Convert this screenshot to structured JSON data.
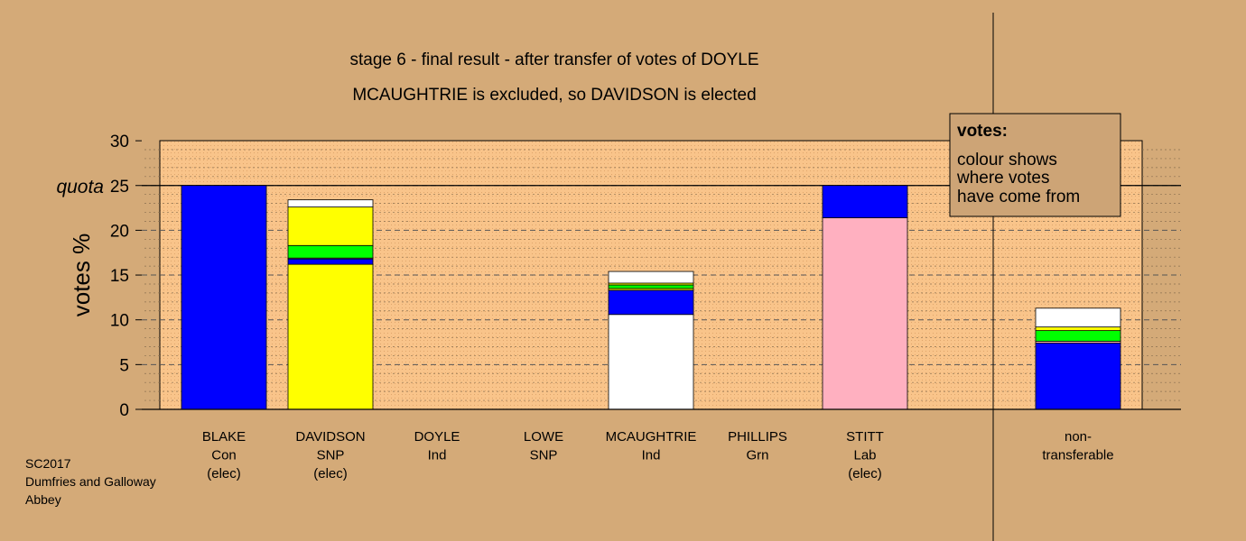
{
  "chart_data": {
    "type": "bar",
    "stacked": true,
    "title": "stage 6 - final result - after transfer of votes of DOYLE",
    "subtitle": "MCAUGHTRIE is excluded, so DAVIDSON is elected",
    "ylabel": "votes %",
    "ylim": [
      0,
      30
    ],
    "yticks": [
      "0",
      "5",
      "10",
      "15",
      "20",
      "25",
      "30"
    ],
    "quota_label": "quota",
    "quota": 25,
    "grid": true,
    "categories": [
      {
        "lines": [
          "BLAKE",
          "Con",
          "(elec)"
        ]
      },
      {
        "lines": [
          "DAVIDSON",
          "SNP",
          "(elec)"
        ]
      },
      {
        "lines": [
          "DOYLE",
          "Ind"
        ]
      },
      {
        "lines": [
          "LOWE",
          "SNP"
        ]
      },
      {
        "lines": [
          "MCAUGHTRIE",
          "Ind"
        ]
      },
      {
        "lines": [
          "PHILLIPS",
          "Grn"
        ]
      },
      {
        "lines": [
          "STITT",
          "Lab",
          "(elec)"
        ]
      },
      {
        "lines": [
          "non-",
          "transferable"
        ]
      }
    ],
    "stacks": [
      [
        {
          "value": 25.0,
          "color": "#0000ff"
        }
      ],
      [
        {
          "value": 16.2,
          "color": "#ffff00"
        },
        {
          "value": 0.6,
          "color": "#0000ff"
        },
        {
          "value": 0.1,
          "color": "#ffb0c0"
        },
        {
          "value": 1.4,
          "color": "#00ff00"
        },
        {
          "value": 4.3,
          "color": "#ffff00"
        },
        {
          "value": 0.8,
          "color": "#ffffff"
        }
      ],
      [],
      [],
      [
        {
          "value": 10.6,
          "color": "#ffffff"
        },
        {
          "value": 2.7,
          "color": "#0000ff"
        },
        {
          "value": 0.2,
          "color": "#ffff00"
        },
        {
          "value": 0.4,
          "color": "#00ff00"
        },
        {
          "value": 0.2,
          "color": "#ffff00"
        },
        {
          "value": 1.3,
          "color": "#ffffff"
        }
      ],
      [],
      [
        {
          "value": 21.4,
          "color": "#ffb0c0"
        },
        {
          "value": 3.6,
          "color": "#0000ff"
        }
      ],
      [
        {
          "value": 7.4,
          "color": "#0000ff"
        },
        {
          "value": 0.2,
          "color": "#ffb0c0"
        },
        {
          "value": 1.2,
          "color": "#00ff00"
        },
        {
          "value": 0.4,
          "color": "#ffff00"
        },
        {
          "value": 2.1,
          "color": "#ffffff"
        }
      ]
    ],
    "legend": {
      "placement": "top-right",
      "title": "votes:",
      "lines": [
        "colour shows",
        "where votes",
        "have come from"
      ]
    }
  },
  "footer": [
    "SC2017",
    "Dumfries and Galloway",
    "Abbey"
  ],
  "colors": {
    "background": "#d4aa78",
    "plot_area": "#f9c48a",
    "legend_box": "#cda476"
  }
}
